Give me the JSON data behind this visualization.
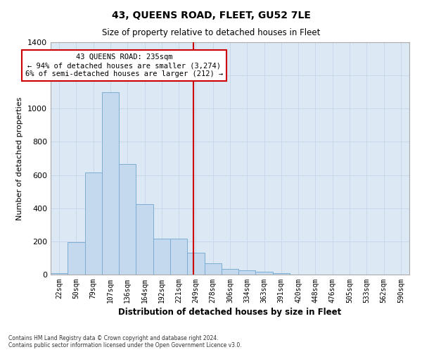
{
  "title": "43, QUEENS ROAD, FLEET, GU52 7LE",
  "subtitle": "Size of property relative to detached houses in Fleet",
  "xlabel": "Distribution of detached houses by size in Fleet",
  "ylabel": "Number of detached properties",
  "categories": [
    "22sqm",
    "50sqm",
    "79sqm",
    "107sqm",
    "136sqm",
    "164sqm",
    "192sqm",
    "221sqm",
    "249sqm",
    "278sqm",
    "306sqm",
    "334sqm",
    "363sqm",
    "391sqm",
    "420sqm",
    "448sqm",
    "476sqm",
    "505sqm",
    "533sqm",
    "562sqm",
    "590sqm"
  ],
  "bar_values": [
    10,
    195,
    615,
    1100,
    665,
    425,
    215,
    215,
    130,
    70,
    35,
    25,
    15,
    10,
    0,
    0,
    0,
    0,
    0,
    0,
    0
  ],
  "bar_color": "#c5d9ee",
  "bar_edge_color": "#7badd4",
  "vline_color": "#cc0000",
  "vline_x": 7.85,
  "annotation_text": "43 QUEENS ROAD: 235sqm\n← 94% of detached houses are smaller (3,274)\n6% of semi-detached houses are larger (212) →",
  "annotation_box_color": "#ffffff",
  "annotation_border_color": "#cc0000",
  "ylim": [
    0,
    1400
  ],
  "yticks": [
    0,
    200,
    400,
    600,
    800,
    1000,
    1200,
    1400
  ],
  "grid_color": "#c8d8ea",
  "background_color": "#dce9f5",
  "footer1": "Contains HM Land Registry data © Crown copyright and database right 2024.",
  "footer2": "Contains public sector information licensed under the Open Government Licence v3.0."
}
